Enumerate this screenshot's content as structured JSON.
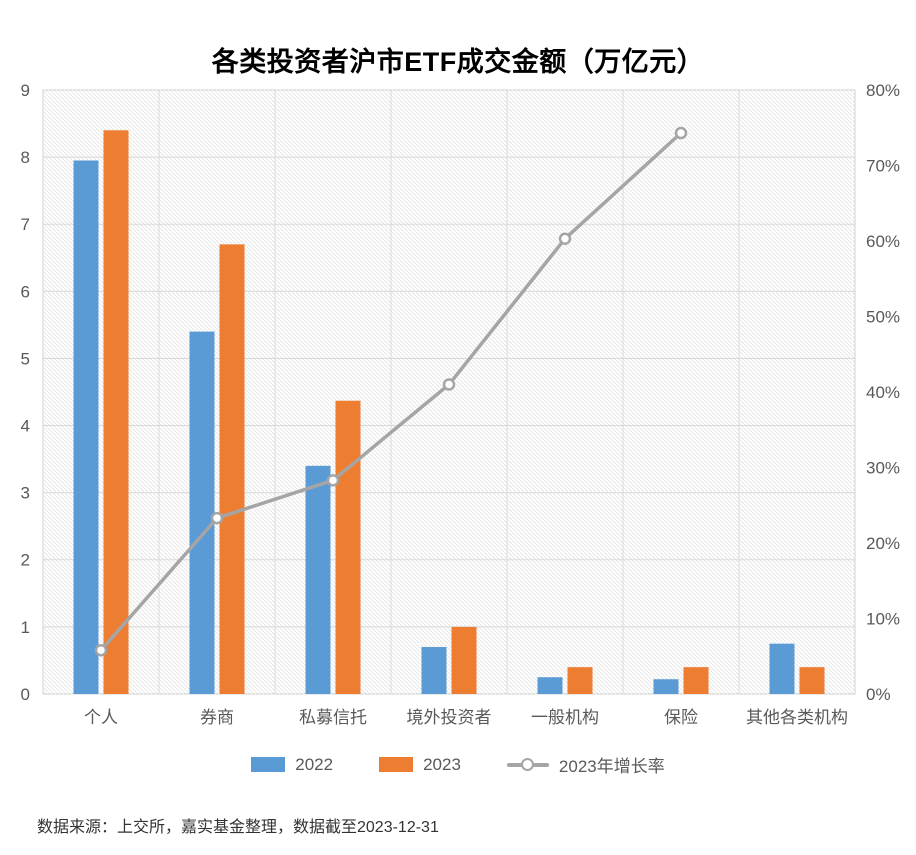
{
  "title": "各类投资者沪市ETF成交金额（万亿元）",
  "source_note": "数据来源：上交所，嘉实基金整理，数据截至2023-12-31",
  "colors": {
    "bar_2022": "#5b9bd5",
    "bar_2023": "#ed7d31",
    "line": "#a5a5a5",
    "marker_fill": "#ffffff",
    "grid": "#d9d9d9",
    "border": "#d2d2d2",
    "hatch": "#e7e7e7",
    "axis_text": "#595959",
    "title_text": "#000000",
    "source_text": "#333333"
  },
  "chart_data": {
    "type": "bar+line",
    "title": "各类投资者沪市ETF成交金额（万亿元）",
    "categories": [
      "个人",
      "券商",
      "私募信托",
      "境外投资者",
      "一般机构",
      "保险",
      "其他各类机构"
    ],
    "series": [
      {
        "name": "2022",
        "type": "bar",
        "axis": "left",
        "values": [
          7.95,
          5.4,
          3.4,
          0.7,
          0.25,
          0.22,
          0.75
        ]
      },
      {
        "name": "2023",
        "type": "bar",
        "axis": "left",
        "values": [
          8.4,
          6.7,
          4.37,
          1.0,
          0.4,
          0.4,
          0.4
        ]
      },
      {
        "name": "2023年增长率",
        "type": "line",
        "axis": "right",
        "unit": "%",
        "values": [
          5.8,
          23.3,
          28.3,
          41.0,
          60.3,
          74.3,
          null
        ]
      }
    ],
    "left_axis": {
      "min": 0,
      "max": 9,
      "step": 1,
      "ticks": [
        "0",
        "1",
        "2",
        "3",
        "4",
        "5",
        "6",
        "7",
        "8",
        "9"
      ]
    },
    "right_axis": {
      "min": 0,
      "max": 80,
      "step": 10,
      "ticks": [
        "0%",
        "10%",
        "20%",
        "30%",
        "40%",
        "50%",
        "60%",
        "70%",
        "80%"
      ]
    },
    "grid": true,
    "plot_background": "diagonal-hatch",
    "legend_position": "bottom"
  }
}
